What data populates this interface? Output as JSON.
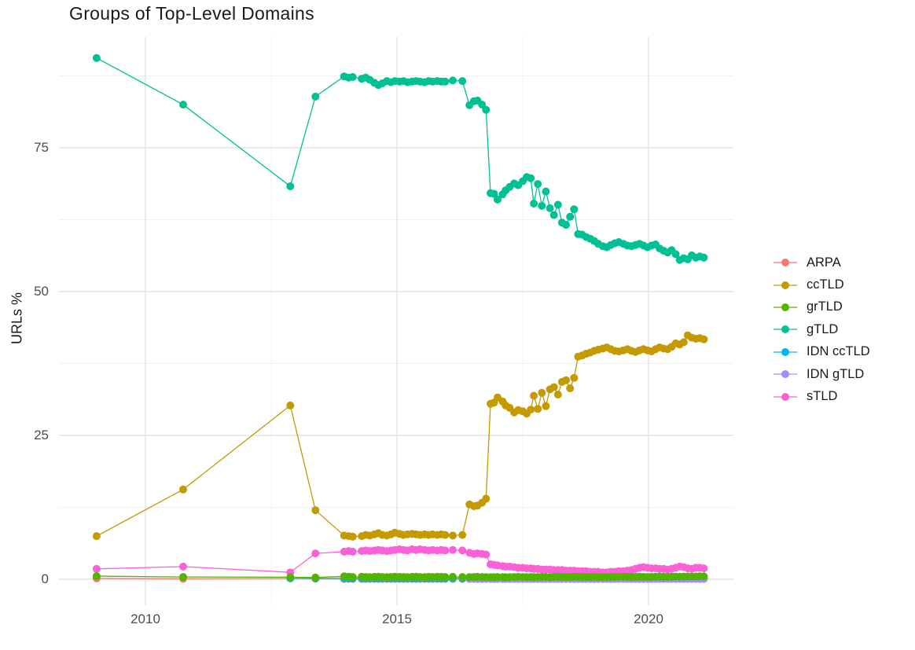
{
  "title": "Groups of Top-Level Domains",
  "chart_data": {
    "type": "line",
    "title": "Groups of Top-Level Domains",
    "xlabel": "",
    "ylabel": "URLs %",
    "legend_position": "right",
    "grid": "major+minor",
    "x_range": [
      2008.3,
      2021.75
    ],
    "y_range": [
      0,
      91
    ],
    "x_ticks": [
      "2010",
      "2015",
      "2020"
    ],
    "x_tick_values": [
      2010,
      2015,
      2020
    ],
    "x_minor": [
      2012.5,
      2017.5
    ],
    "y_ticks": [
      "0",
      "25",
      "50",
      "75"
    ],
    "y_tick_values": [
      0,
      25,
      50,
      75
    ],
    "y_minor": [
      12.5,
      37.5,
      62.5,
      87.5
    ],
    "dense_x": [
      2013.95,
      2014.04,
      2014.12,
      2014.3,
      2014.38,
      2014.46,
      2014.55,
      2014.63,
      2014.71,
      2014.8,
      2014.88,
      2014.96,
      2015.05,
      2015.13,
      2015.21,
      2015.3,
      2015.38,
      2015.46,
      2015.55,
      2015.63,
      2015.71,
      2015.8,
      2015.88,
      2015.96,
      2016.11,
      2016.3,
      2016.44,
      2016.53,
      2016.6,
      2016.69,
      2016.77,
      2016.86,
      2016.93,
      2017.0,
      2017.1,
      2017.16,
      2017.24,
      2017.33,
      2017.41,
      2017.5,
      2017.58,
      2017.66,
      2017.72,
      2017.8,
      2017.88,
      2017.96,
      2018.04,
      2018.12,
      2018.2,
      2018.28,
      2018.36,
      2018.44,
      2018.52,
      2018.6,
      2018.68,
      2018.76,
      2018.84,
      2018.92,
      2019.0,
      2019.09,
      2019.17,
      2019.25,
      2019.33,
      2019.41,
      2019.5,
      2019.58,
      2019.66,
      2019.74,
      2019.82,
      2019.9,
      2019.98,
      2020.06,
      2020.14,
      2020.22,
      2020.3,
      2020.38,
      2020.46,
      2020.54,
      2020.62,
      2020.7,
      2020.78,
      2020.86,
      2020.94,
      2021.02,
      2021.1
    ],
    "series": [
      {
        "name": "ARPA",
        "color": "#F8766D",
        "z": 1,
        "sparse": [
          [
            2009.03,
            0.15
          ],
          [
            2010.75,
            0.1
          ],
          [
            2012.88,
            0.15
          ],
          [
            2013.38,
            0.1
          ]
        ],
        "dense_start": 0,
        "dense_end": 25,
        "dense_const": 0.05
      },
      {
        "name": "ccTLD",
        "color": "#C49A00",
        "z": 4,
        "sparse": [
          [
            2009.03,
            7.5
          ],
          [
            2010.75,
            15.6
          ],
          [
            2012.88,
            30.2
          ],
          [
            2013.38,
            12.0
          ]
        ],
        "dense_start": 0,
        "dense_values": [
          7.6,
          7.5,
          7.4,
          7.5,
          7.7,
          7.6,
          7.8,
          8.0,
          7.7,
          7.6,
          7.8,
          8.1,
          7.9,
          7.7,
          7.8,
          7.9,
          7.8,
          7.7,
          7.8,
          7.7,
          7.8,
          7.7,
          7.8,
          7.7,
          7.6,
          7.7,
          13.0,
          12.7,
          12.8,
          13.3,
          14.0,
          30.5,
          30.7,
          31.6,
          30.9,
          30.2,
          29.8,
          29.0,
          29.4,
          29.2,
          28.8,
          29.5,
          31.9,
          29.6,
          32.4,
          30.1,
          33.0,
          33.4,
          32.1,
          34.3,
          34.6,
          33.2,
          35.0,
          38.7,
          38.9,
          39.2,
          39.4,
          39.7,
          39.9,
          40.1,
          40.3,
          40.0,
          39.7,
          39.6,
          39.8,
          40.0,
          39.7,
          39.5,
          39.8,
          40.0,
          39.8,
          39.6,
          40.0,
          40.3,
          40.1,
          40.0,
          40.4,
          41.0,
          40.8,
          41.2,
          42.4,
          42.0,
          41.8,
          41.9,
          41.7
        ]
      },
      {
        "name": "grTLD",
        "color": "#53B400",
        "z": 7,
        "sparse": [
          [
            2009.03,
            0.55
          ],
          [
            2010.75,
            0.4
          ],
          [
            2012.88,
            0.35
          ],
          [
            2013.38,
            0.3
          ]
        ],
        "dense_start": 0,
        "dense_values": [
          0.5,
          0.45,
          0.4,
          0.45,
          0.4,
          0.38,
          0.42,
          0.45,
          0.4,
          0.38,
          0.4,
          0.44,
          0.42,
          0.4,
          0.38,
          0.42,
          0.44,
          0.4,
          0.38,
          0.42,
          0.4,
          0.44,
          0.42,
          0.4,
          0.42,
          0.4,
          0.38,
          0.4,
          0.42,
          0.4,
          0.38,
          0.35,
          0.38,
          0.4,
          0.38,
          0.36,
          0.38,
          0.4,
          0.42,
          0.4,
          0.38,
          0.4,
          0.38,
          0.4,
          0.42,
          0.4,
          0.38,
          0.4,
          0.42,
          0.4,
          0.38,
          0.4,
          0.42,
          0.44,
          0.4,
          0.38,
          0.4,
          0.42,
          0.4,
          0.38,
          0.4,
          0.42,
          0.4,
          0.42,
          0.44,
          0.42,
          0.4,
          0.42,
          0.44,
          0.42,
          0.4,
          0.42,
          0.44,
          0.46,
          0.44,
          0.42,
          0.44,
          0.46,
          0.44,
          0.46,
          0.48,
          0.46,
          0.48,
          0.5,
          0.5
        ]
      },
      {
        "name": "gTLD",
        "color": "#00C094",
        "z": 5,
        "sparse": [
          [
            2009.03,
            90.6
          ],
          [
            2010.75,
            82.5
          ],
          [
            2012.88,
            68.3
          ],
          [
            2013.38,
            83.9
          ]
        ],
        "dense_start": 0,
        "dense_values": [
          87.4,
          87.2,
          87.3,
          87.0,
          87.2,
          86.8,
          86.3,
          85.9,
          86.2,
          86.6,
          86.4,
          86.6,
          86.5,
          86.6,
          86.4,
          86.5,
          86.6,
          86.5,
          86.4,
          86.6,
          86.5,
          86.6,
          86.5,
          86.5,
          86.7,
          86.6,
          82.4,
          83.1,
          83.2,
          82.5,
          81.6,
          67.1,
          67.0,
          66.0,
          66.9,
          67.6,
          68.2,
          68.8,
          68.5,
          69.2,
          69.9,
          69.7,
          65.3,
          68.7,
          64.9,
          67.4,
          64.5,
          63.3,
          65.1,
          62.0,
          61.6,
          63.0,
          64.3,
          60.0,
          59.9,
          59.5,
          59.2,
          58.8,
          58.3,
          57.9,
          57.7,
          58.1,
          58.4,
          58.6,
          58.3,
          58.0,
          57.9,
          58.1,
          58.3,
          58.0,
          57.7,
          58.0,
          58.2,
          57.5,
          57.1,
          56.8,
          57.2,
          56.5,
          55.5,
          55.8,
          55.6,
          56.3,
          55.9,
          56.1,
          55.9
        ]
      },
      {
        "name": "IDN ccTLD",
        "color": "#00B6EB",
        "z": 2,
        "sparse": [
          [
            2012.88,
            0.15
          ],
          [
            2013.38,
            0.15
          ]
        ],
        "dense_start": 0,
        "dense_end": 84,
        "dense_const": 0.15
      },
      {
        "name": "IDN gTLD",
        "color": "#A58AFF",
        "z": 3,
        "sparse": [],
        "dense_start": 26,
        "dense_end": 84,
        "dense_const": 0.05
      },
      {
        "name": "sTLD",
        "color": "#FB61D7",
        "z": 6,
        "sparse": [
          [
            2009.03,
            1.8
          ],
          [
            2010.75,
            2.2
          ],
          [
            2012.88,
            1.2
          ],
          [
            2013.38,
            4.5
          ]
        ],
        "dense_start": 0,
        "dense_values": [
          4.8,
          4.9,
          4.8,
          4.9,
          5.0,
          4.9,
          5.0,
          5.1,
          5.0,
          4.9,
          5.0,
          5.1,
          5.2,
          5.1,
          5.0,
          5.2,
          5.1,
          5.2,
          5.1,
          5.0,
          5.1,
          5.0,
          5.1,
          5.0,
          5.1,
          5.0,
          4.6,
          4.4,
          4.5,
          4.4,
          4.3,
          2.6,
          2.5,
          2.4,
          2.3,
          2.2,
          2.2,
          2.1,
          2.0,
          2.0,
          1.9,
          1.9,
          1.8,
          1.8,
          1.7,
          1.7,
          1.7,
          1.6,
          1.6,
          1.6,
          1.5,
          1.5,
          1.5,
          1.4,
          1.4,
          1.4,
          1.3,
          1.3,
          1.3,
          1.2,
          1.2,
          1.3,
          1.3,
          1.4,
          1.4,
          1.5,
          1.6,
          1.8,
          2.0,
          2.1,
          2.0,
          1.9,
          1.9,
          1.8,
          1.8,
          1.7,
          1.8,
          2.0,
          2.2,
          2.1,
          1.9,
          1.8,
          2.0,
          2.0,
          1.9
        ]
      }
    ],
    "style": {
      "grid_major_color": "#e3e3e3",
      "grid_minor_color": "#f0f0f0",
      "point_radius": 5,
      "line_width": 1.3
    }
  }
}
